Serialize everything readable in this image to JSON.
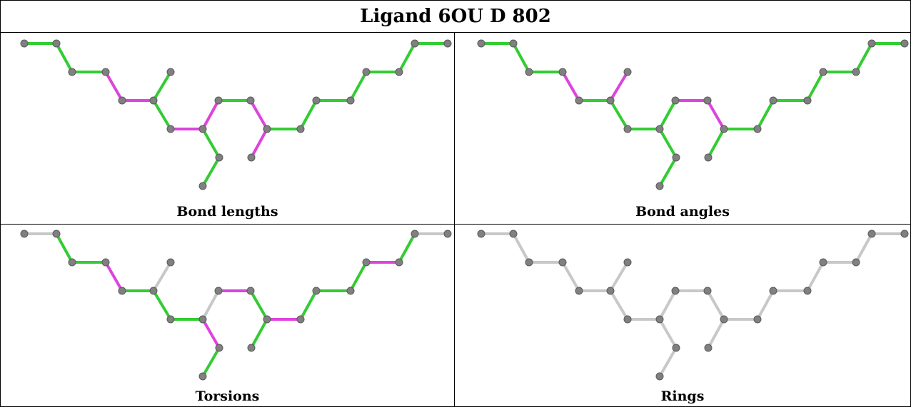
{
  "title": "Ligand 6OU D 802",
  "colors": {
    "good": "#33cc33",
    "outlier": "#dd44dd",
    "neutral": "#c8c8c8",
    "atom": "#808080"
  },
  "panels": [
    {
      "id": "bond-lengths",
      "label": "Bond lengths",
      "bonds": [
        "g",
        "g",
        "g",
        "m",
        "m",
        "g",
        "g",
        "m",
        "g",
        "g",
        "m",
        "g",
        "m",
        "m",
        "g",
        "g",
        "g",
        "g",
        "g",
        "g",
        "g"
      ]
    },
    {
      "id": "bond-angles",
      "label": "Bond angles",
      "bonds": [
        "g",
        "g",
        "g",
        "m",
        "g",
        "m",
        "g",
        "g",
        "g",
        "g",
        "g",
        "m",
        "m",
        "g",
        "g",
        "g",
        "g",
        "g",
        "g",
        "g",
        "g"
      ]
    },
    {
      "id": "torsions",
      "label": "Torsions",
      "bonds": [
        "n",
        "g",
        "g",
        "m",
        "g",
        "n",
        "g",
        "g",
        "m",
        "g",
        "n",
        "m",
        "g",
        "g",
        "m",
        "g",
        "g",
        "g",
        "m",
        "g",
        "n"
      ]
    },
    {
      "id": "rings",
      "label": "Rings",
      "bonds": [
        "n",
        "n",
        "n",
        "n",
        "n",
        "n",
        "n",
        "n",
        "n",
        "n",
        "n",
        "n",
        "n",
        "n",
        "n",
        "n",
        "n",
        "n",
        "n",
        "n",
        "n"
      ]
    }
  ]
}
